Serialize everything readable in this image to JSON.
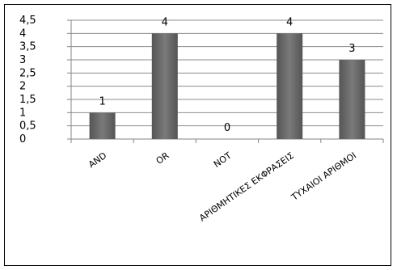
{
  "chart_data": {
    "type": "bar",
    "categories": [
      "AND",
      "OR",
      "NOT",
      "ΑΡΙΘΜΗΤΙΚΕΣ ΕΚΦΡΑΣΕΙΣ",
      "ΤΥΧΑΙΟΙ ΑΡΙΘΜΟΙ"
    ],
    "values": [
      1,
      4,
      0,
      4,
      3
    ],
    "data_labels": [
      "1",
      "4",
      "0",
      "4",
      "3"
    ],
    "ylim": [
      0,
      4.5
    ],
    "yticks": [
      "0",
      "0,5",
      "1",
      "1,5",
      "2",
      "2,5",
      "3",
      "3,5",
      "4",
      "4,5"
    ],
    "grid": true,
    "legend": "none",
    "colors": {
      "bar": "#555555",
      "bar_light": "#7a7a7a",
      "grid": "#8c8c8c",
      "axis": "#868686"
    }
  }
}
